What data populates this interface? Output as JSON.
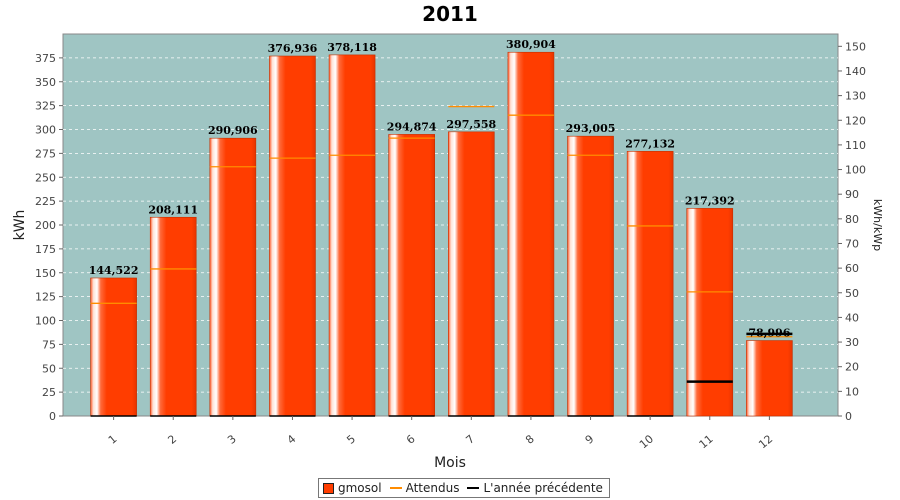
{
  "chart_data": {
    "type": "bar",
    "title": "2011",
    "xlabel": "Mois",
    "ylabel": "kWh",
    "y2label": "kWh/kWp",
    "categories": [
      "1",
      "2",
      "3",
      "4",
      "5",
      "6",
      "7",
      "8",
      "9",
      "10",
      "11",
      "12"
    ],
    "ylim": [
      0,
      400
    ],
    "y2lim": [
      0,
      155
    ],
    "yticks": [
      0,
      25,
      50,
      75,
      100,
      125,
      150,
      175,
      200,
      225,
      250,
      275,
      300,
      325,
      350,
      375
    ],
    "y2ticks": [
      0,
      10,
      20,
      30,
      40,
      50,
      60,
      70,
      80,
      90,
      100,
      110,
      120,
      130,
      140,
      150
    ],
    "grid": true,
    "legend_position": "bottom",
    "series": [
      {
        "name": "gmosol",
        "kind": "bar",
        "color": "#ff3d00",
        "values": [
          144.522,
          208.111,
          290.906,
          376.936,
          378.118,
          294.874,
          297.558,
          380.904,
          293.005,
          277.132,
          217.392,
          78.996
        ],
        "labels": [
          "144,522",
          "208,111",
          "290,906",
          "376,936",
          "378,118",
          "294,874",
          "297,558",
          "380,904",
          "293,005",
          "277,132",
          "217,392",
          "78,996"
        ]
      },
      {
        "name": "Attendus",
        "kind": "marker",
        "color": "#ff8c00",
        "values": [
          118,
          154,
          261,
          270,
          273,
          291,
          324,
          315,
          273,
          199,
          130,
          83
        ]
      },
      {
        "name": "L'année précédente",
        "kind": "marker",
        "color": "#000000",
        "values": [
          0,
          0,
          0,
          0,
          0,
          0,
          0,
          0,
          0,
          0,
          36,
          86
        ]
      }
    ],
    "colors": {
      "plot_bg": "#9fc5c3",
      "grid": "#ffffff",
      "bar": "#ff3d00"
    }
  },
  "legend": {
    "items": [
      {
        "label": "gmosol",
        "color": "#ff3d00",
        "kind": "box"
      },
      {
        "label": "Attendus",
        "color": "#ff8c00",
        "kind": "line"
      },
      {
        "label": "L'année précédente",
        "color": "#000000",
        "kind": "line"
      }
    ]
  }
}
